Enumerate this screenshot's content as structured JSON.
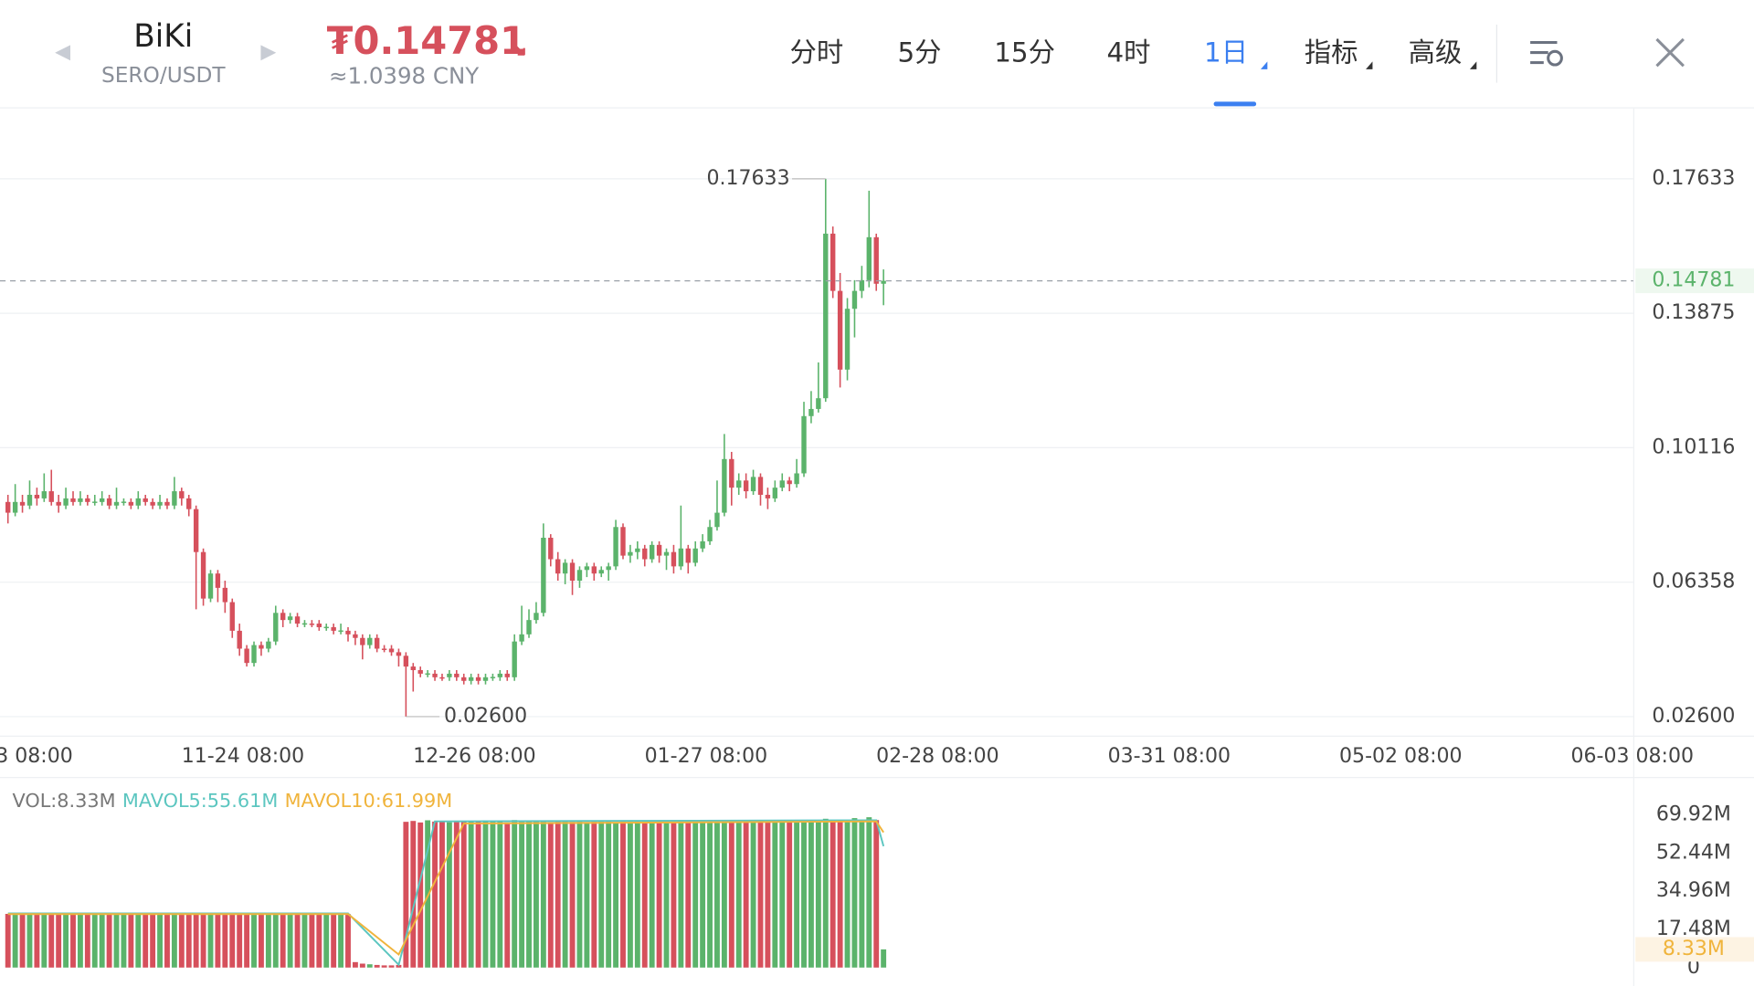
{
  "header": {
    "symbol": "BiKi",
    "pair": "SERO/USDT",
    "price": "₮0.14781",
    "cny": "≈1.0398 CNY",
    "tabs": [
      "分时",
      "5分",
      "15分",
      "4时",
      "1日",
      "指标",
      "高级"
    ]
  },
  "chart_data": {
    "type": "candlestick",
    "ylim": [
      0.0207,
      0.196
    ],
    "yticks": [
      {
        "value": 0.026,
        "label": "0.02600"
      },
      0.06358,
      0.10116,
      0.13875,
      0.17633
    ],
    "xlim": [
      -33.1,
      192.6
    ],
    "xticks": [
      {
        "value": -32,
        "label": "3 08:00"
      },
      {
        "value": 0,
        "label": "11-24 08:00"
      },
      {
        "value": 32,
        "label": "12-26 08:00"
      },
      {
        "value": 64,
        "label": "01-27 08:00"
      },
      {
        "value": 96,
        "label": "02-28 08:00"
      },
      {
        "value": 128,
        "label": "03-31 08:00"
      },
      {
        "value": 160,
        "label": "05-02 08:00"
      },
      {
        "value": 192,
        "label": "06-03 08:00"
      }
    ],
    "x_start": -32,
    "up_color": "#5bb36b",
    "down_color": "#d6505c",
    "last_price": 0.14781,
    "max_label": "0.17633",
    "min_label": "0.02600",
    "candles": [
      [
        0.086,
        0.088,
        0.08,
        0.083
      ],
      [
        0.083,
        0.091,
        0.082,
        0.086
      ],
      [
        0.086,
        0.088,
        0.083,
        0.085
      ],
      [
        0.085,
        0.092,
        0.084,
        0.088
      ],
      [
        0.088,
        0.09,
        0.085,
        0.087
      ],
      [
        0.087,
        0.094,
        0.086,
        0.089
      ],
      [
        0.089,
        0.095,
        0.085,
        0.086
      ],
      [
        0.086,
        0.088,
        0.083,
        0.085
      ],
      [
        0.085,
        0.09,
        0.084,
        0.087
      ],
      [
        0.087,
        0.089,
        0.085,
        0.086
      ],
      [
        0.086,
        0.089,
        0.085,
        0.087
      ],
      [
        0.087,
        0.088,
        0.085,
        0.086
      ],
      [
        0.086,
        0.088,
        0.085,
        0.0861
      ],
      [
        0.086,
        0.089,
        0.085,
        0.087
      ],
      [
        0.087,
        0.088,
        0.084,
        0.085
      ],
      [
        0.085,
        0.09,
        0.084,
        0.086
      ],
      [
        0.086,
        0.087,
        0.085,
        0.0861
      ],
      [
        0.086,
        0.087,
        0.084,
        0.085
      ],
      [
        0.085,
        0.089,
        0.084,
        0.087
      ],
      [
        0.087,
        0.088,
        0.085,
        0.086
      ],
      [
        0.086,
        0.087,
        0.084,
        0.085
      ],
      [
        0.085,
        0.088,
        0.084,
        0.086
      ],
      [
        0.086,
        0.087,
        0.084,
        0.085
      ],
      [
        0.085,
        0.093,
        0.084,
        0.089
      ],
      [
        0.089,
        0.09,
        0.085,
        0.087
      ],
      [
        0.087,
        0.088,
        0.082,
        0.084
      ],
      [
        0.084,
        0.085,
        0.056,
        0.072
      ],
      [
        0.072,
        0.073,
        0.057,
        0.059
      ],
      [
        0.059,
        0.067,
        0.058,
        0.066
      ],
      [
        0.066,
        0.067,
        0.058,
        0.062
      ],
      [
        0.062,
        0.064,
        0.055,
        0.058
      ],
      [
        0.058,
        0.059,
        0.048,
        0.05
      ],
      [
        0.05,
        0.052,
        0.043,
        0.045
      ],
      [
        0.045,
        0.046,
        0.04,
        0.041
      ],
      [
        0.041,
        0.047,
        0.04,
        0.046
      ],
      [
        0.046,
        0.047,
        0.043,
        0.045
      ],
      [
        0.045,
        0.048,
        0.044,
        0.047
      ],
      [
        0.047,
        0.057,
        0.046,
        0.055
      ],
      [
        0.055,
        0.056,
        0.051,
        0.053
      ],
      [
        0.053,
        0.055,
        0.052,
        0.054
      ],
      [
        0.054,
        0.055,
        0.051,
        0.052
      ],
      [
        0.052,
        0.053,
        0.051,
        0.0521
      ],
      [
        0.052,
        0.053,
        0.051,
        0.0519
      ],
      [
        0.052,
        0.053,
        0.05,
        0.051
      ],
      [
        0.051,
        0.052,
        0.05,
        0.0511
      ],
      [
        0.051,
        0.052,
        0.049,
        0.05
      ],
      [
        0.05,
        0.052,
        0.049,
        0.0501
      ],
      [
        0.05,
        0.051,
        0.047,
        0.049
      ],
      [
        0.049,
        0.05,
        0.046,
        0.048
      ],
      [
        0.048,
        0.049,
        0.042,
        0.046
      ],
      [
        0.046,
        0.049,
        0.045,
        0.048
      ],
      [
        0.048,
        0.049,
        0.044,
        0.045
      ],
      [
        0.045,
        0.046,
        0.044,
        0.0449
      ],
      [
        0.045,
        0.046,
        0.043,
        0.044
      ],
      [
        0.044,
        0.045,
        0.04,
        0.043
      ],
      [
        0.043,
        0.044,
        0.026,
        0.04
      ],
      [
        0.04,
        0.041,
        0.033,
        0.039
      ],
      [
        0.039,
        0.04,
        0.037,
        0.038
      ],
      [
        0.038,
        0.039,
        0.037,
        0.0381
      ],
      [
        0.038,
        0.039,
        0.036,
        0.037
      ],
      [
        0.037,
        0.038,
        0.036,
        0.0369
      ],
      [
        0.037,
        0.039,
        0.036,
        0.038
      ],
      [
        0.038,
        0.039,
        0.036,
        0.037
      ],
      [
        0.037,
        0.038,
        0.035,
        0.036
      ],
      [
        0.036,
        0.038,
        0.035,
        0.037
      ],
      [
        0.037,
        0.038,
        0.035,
        0.036
      ],
      [
        0.036,
        0.038,
        0.035,
        0.037
      ],
      [
        0.037,
        0.038,
        0.036,
        0.0371
      ],
      [
        0.037,
        0.039,
        0.036,
        0.038
      ],
      [
        0.038,
        0.039,
        0.036,
        0.037
      ],
      [
        0.037,
        0.049,
        0.036,
        0.047
      ],
      [
        0.047,
        0.057,
        0.046,
        0.049
      ],
      [
        0.049,
        0.056,
        0.048,
        0.053
      ],
      [
        0.053,
        0.058,
        0.052,
        0.055
      ],
      [
        0.055,
        0.08,
        0.054,
        0.076
      ],
      [
        0.076,
        0.077,
        0.068,
        0.07
      ],
      [
        0.07,
        0.072,
        0.064,
        0.066
      ],
      [
        0.066,
        0.07,
        0.063,
        0.069
      ],
      [
        0.069,
        0.07,
        0.06,
        0.064
      ],
      [
        0.064,
        0.068,
        0.062,
        0.067
      ],
      [
        0.067,
        0.069,
        0.065,
        0.068
      ],
      [
        0.068,
        0.069,
        0.064,
        0.066
      ],
      [
        0.066,
        0.068,
        0.065,
        0.067
      ],
      [
        0.067,
        0.069,
        0.064,
        0.068
      ],
      [
        0.068,
        0.081,
        0.067,
        0.079
      ],
      [
        0.079,
        0.08,
        0.07,
        0.071
      ],
      [
        0.071,
        0.074,
        0.069,
        0.072
      ],
      [
        0.072,
        0.075,
        0.07,
        0.073
      ],
      [
        0.073,
        0.074,
        0.068,
        0.07
      ],
      [
        0.07,
        0.075,
        0.069,
        0.074
      ],
      [
        0.074,
        0.075,
        0.069,
        0.071
      ],
      [
        0.071,
        0.073,
        0.067,
        0.072
      ],
      [
        0.072,
        0.074,
        0.066,
        0.068
      ],
      [
        0.068,
        0.085,
        0.067,
        0.073
      ],
      [
        0.073,
        0.074,
        0.066,
        0.069
      ],
      [
        0.069,
        0.075,
        0.068,
        0.073
      ],
      [
        0.073,
        0.077,
        0.072,
        0.075
      ],
      [
        0.075,
        0.081,
        0.074,
        0.079
      ],
      [
        0.079,
        0.092,
        0.078,
        0.083
      ],
      [
        0.083,
        0.105,
        0.082,
        0.098
      ],
      [
        0.098,
        0.1,
        0.085,
        0.09
      ],
      [
        0.09,
        0.094,
        0.088,
        0.092
      ],
      [
        0.092,
        0.094,
        0.087,
        0.089
      ],
      [
        0.089,
        0.095,
        0.088,
        0.093
      ],
      [
        0.093,
        0.094,
        0.085,
        0.088
      ],
      [
        0.088,
        0.09,
        0.084,
        0.087
      ],
      [
        0.087,
        0.092,
        0.086,
        0.09
      ],
      [
        0.09,
        0.094,
        0.089,
        0.092
      ],
      [
        0.092,
        0.093,
        0.089,
        0.091
      ],
      [
        0.091,
        0.098,
        0.09,
        0.094
      ],
      [
        0.094,
        0.114,
        0.093,
        0.11
      ],
      [
        0.11,
        0.117,
        0.108,
        0.112
      ],
      [
        0.112,
        0.125,
        0.111,
        0.115
      ],
      [
        0.115,
        0.17633,
        0.114,
        0.161
      ],
      [
        0.161,
        0.163,
        0.143,
        0.145
      ],
      [
        0.145,
        0.15,
        0.118,
        0.123
      ],
      [
        0.123,
        0.143,
        0.12,
        0.14
      ],
      [
        0.14,
        0.148,
        0.132,
        0.145
      ],
      [
        0.145,
        0.152,
        0.143,
        0.148
      ],
      [
        0.148,
        0.173,
        0.146,
        0.16
      ],
      [
        0.16,
        0.161,
        0.145,
        0.147
      ],
      [
        0.147,
        0.151,
        0.141,
        0.14781
      ]
    ],
    "volume": {
      "vol_label": "VOL:8.33M",
      "ma5_label": "MAVOL5:55.61M",
      "ma10_label": "MAVOL10:61.99M",
      "badge": "8.33M",
      "ylim": [
        0,
        84.8
      ],
      "yticks": [
        0,
        {
          "value": 17.48,
          "label": "17.48M"
        },
        {
          "value": 34.96,
          "label": "34.96M"
        },
        {
          "value": 52.44,
          "label": "52.44M"
        },
        {
          "value": 69.92,
          "label": "69.92M"
        }
      ],
      "values": [
        24.6,
        24.9,
        24.3,
        24.8,
        24.5,
        24.7,
        24.4,
        24.9,
        24.6,
        24.5,
        24.8,
        24.3,
        24.7,
        24.6,
        24.9,
        24.4,
        24.5,
        24.8,
        24.6,
        24.7,
        24.3,
        24.9,
        24.5,
        24.6,
        24.8,
        24.4,
        24.7,
        24.5,
        24.9,
        24.6,
        24.3,
        24.8,
        24.5,
        24.7,
        24.6,
        24.4,
        24.9,
        24.5,
        24.8,
        24.6,
        24.3,
        24.7,
        24.5,
        24.9,
        24.6,
        24.4,
        24.8,
        24.5,
        2.5,
        1.8,
        1.5,
        1.2,
        1.0,
        1.0,
        1.2,
        66.8,
        67.2,
        66.5,
        67.5,
        66.9,
        67.1,
        66.6,
        67.3,
        66.8,
        67.0,
        66.7,
        67.4,
        66.9,
        67.2,
        66.5,
        67.6,
        66.8,
        67.1,
        66.9,
        67.3,
        66.6,
        67.0,
        67.2,
        66.8,
        67.4,
        66.7,
        67.1,
        66.9,
        67.5,
        66.6,
        67.2,
        66.8,
        67.3,
        67.0,
        66.7,
        67.4,
        66.9,
        67.1,
        66.6,
        67.5,
        66.8,
        67.2,
        66.9,
        67.0,
        67.3,
        66.7,
        67.4,
        66.8,
        67.1,
        67.6,
        66.9,
        67.2,
        66.8,
        67.5,
        67.0,
        66.7,
        67.3,
        67.1,
        68.2,
        66.9,
        67.4,
        67.0,
        68.5,
        67.2,
        68.9,
        67.6,
        8.33
      ],
      "ma5": {
        "name": "MAVOL5",
        "color": "#5cc6c0",
        "x": [
          -32,
          15,
          22,
          23,
          27,
          88,
          89
        ],
        "values": [
          24.8,
          24.8,
          1.3,
          14,
          67,
          67.5,
          55.61
        ]
      },
      "ma10": {
        "name": "MAVOL10",
        "color": "#f0b43c",
        "x": [
          -32,
          15,
          22,
          31,
          88,
          89
        ],
        "values": [
          24.5,
          24.5,
          6,
          66,
          67,
          61.99
        ]
      }
    }
  }
}
